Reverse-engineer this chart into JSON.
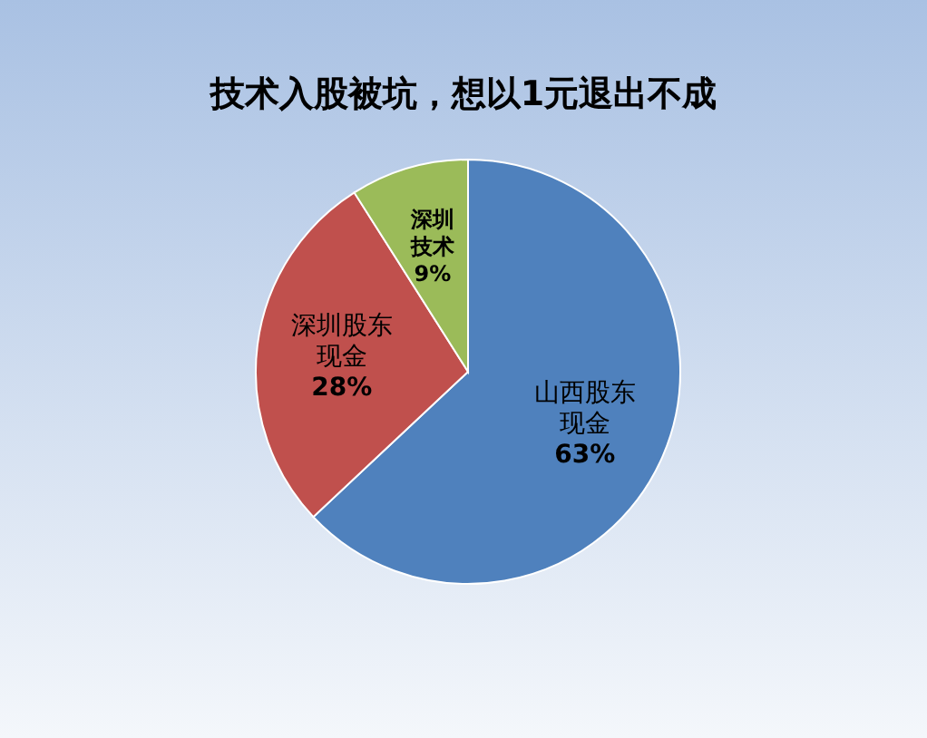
{
  "chart_data": {
    "type": "pie",
    "title": "技术入股被坑，想以1元退出不成",
    "categories": [
      "山西股东现金",
      "深圳股东现金",
      "深圳技术"
    ],
    "values": [
      63,
      28,
      9
    ],
    "colors": [
      "#4f81bd",
      "#c0504d",
      "#9bbb59"
    ],
    "value_labels": [
      "63%",
      "28%",
      "9%"
    ]
  }
}
